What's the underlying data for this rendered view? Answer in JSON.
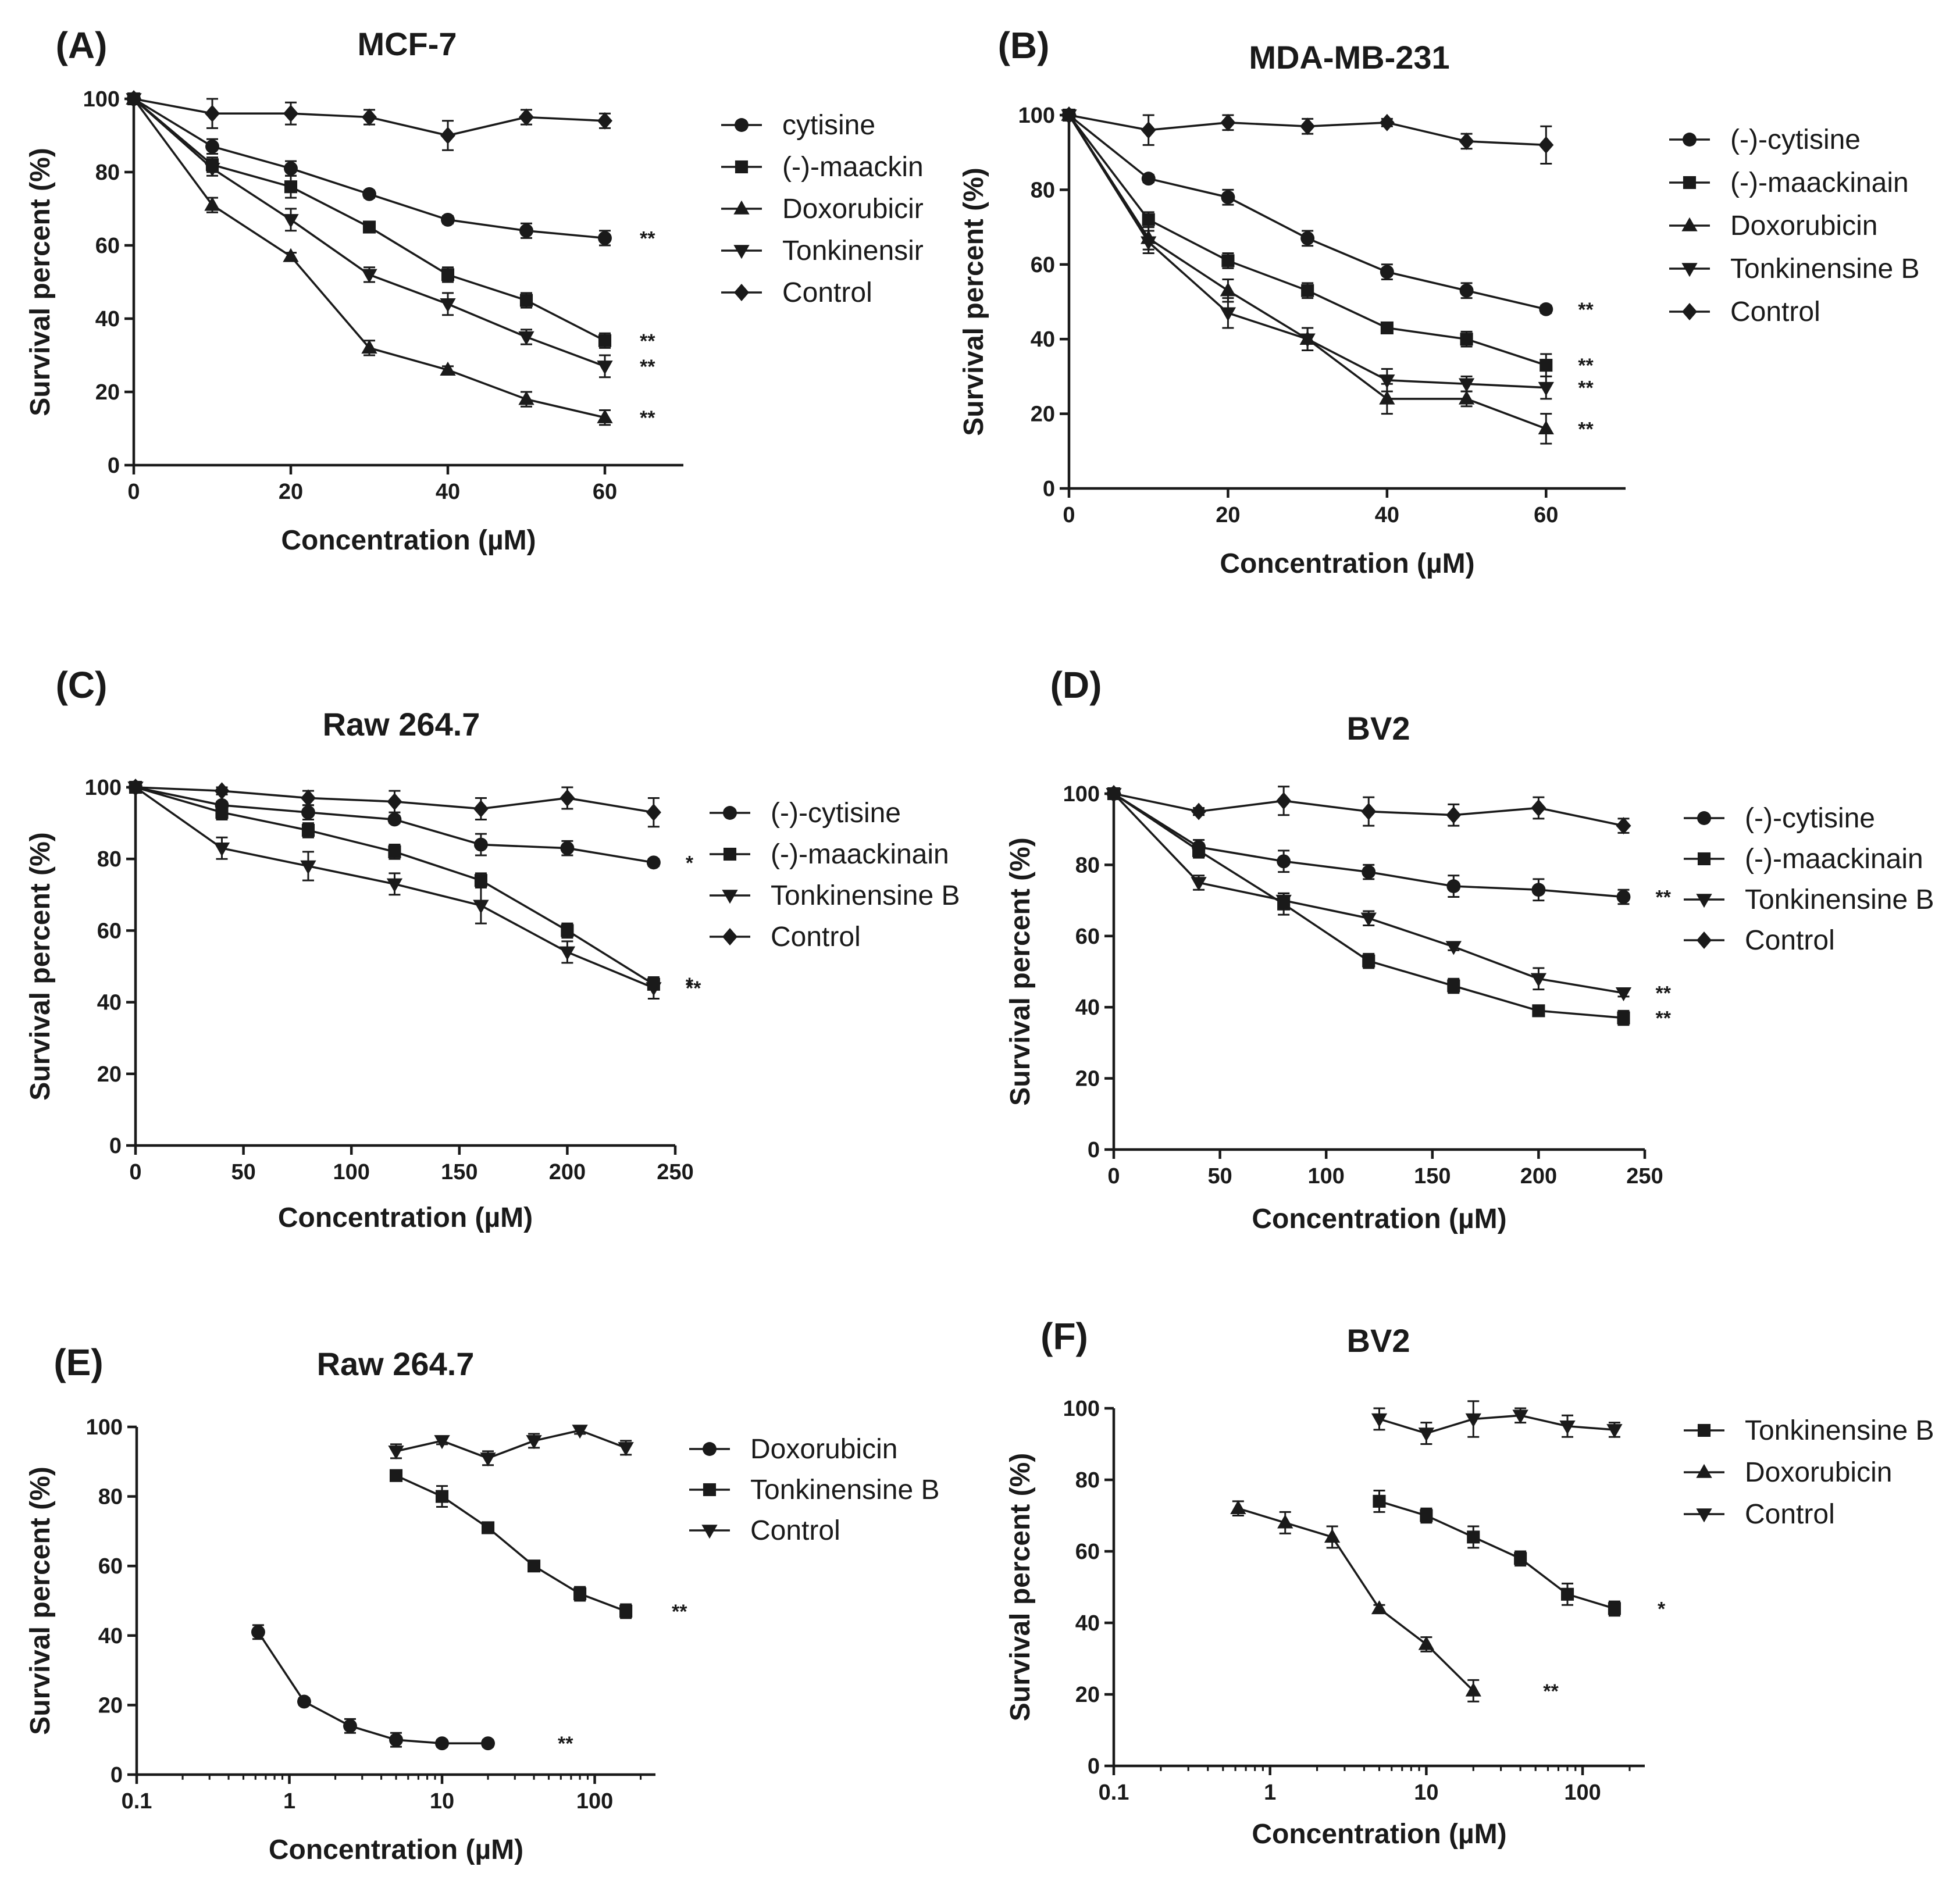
{
  "chart_data": [
    {
      "id": "A",
      "type": "line",
      "panel_label": "(A)",
      "title": "MCF-7",
      "xlabel": "Concentration (µM)",
      "ylabel": "Survival percent (%)",
      "xscale": "linear",
      "xlim": [
        0,
        70
      ],
      "ylim": [
        0,
        100
      ],
      "xticks": [
        0,
        20,
        40,
        60
      ],
      "yticks": [
        0,
        20,
        40,
        60,
        80,
        100
      ],
      "legend_position": "right",
      "series": [
        {
          "name": "cytisine",
          "marker": "circle",
          "x": [
            0,
            10,
            20,
            30,
            40,
            50,
            60
          ],
          "values": [
            100,
            87,
            81,
            74,
            67,
            64,
            62
          ],
          "errors": [
            0,
            2,
            2,
            1,
            1,
            2,
            2
          ],
          "significance": "**"
        },
        {
          "name": "(-)-maackin",
          "marker": "square",
          "x": [
            0,
            10,
            20,
            30,
            40,
            50,
            60
          ],
          "values": [
            100,
            82,
            76,
            65,
            52,
            45,
            34
          ],
          "errors": [
            0,
            2,
            3,
            1,
            2,
            2,
            2
          ],
          "significance": "**"
        },
        {
          "name": "Doxorubicir",
          "marker": "triangle-up",
          "x": [
            0,
            10,
            20,
            30,
            40,
            50,
            60
          ],
          "values": [
            100,
            71,
            57,
            32,
            26,
            18,
            13
          ],
          "errors": [
            0,
            2,
            1,
            2,
            1,
            2,
            2
          ],
          "significance": "**"
        },
        {
          "name": "Tonkinensir",
          "marker": "triangle-down",
          "x": [
            0,
            10,
            20,
            30,
            40,
            50,
            60
          ],
          "values": [
            100,
            81,
            67,
            52,
            44,
            35,
            27
          ],
          "errors": [
            0,
            2,
            3,
            2,
            3,
            2,
            3
          ],
          "significance": "**"
        },
        {
          "name": "Control",
          "marker": "diamond",
          "x": [
            0,
            10,
            20,
            30,
            40,
            50,
            60
          ],
          "values": [
            100,
            96,
            96,
            95,
            90,
            95,
            94
          ],
          "errors": [
            0,
            4,
            3,
            2,
            4,
            2,
            2
          ],
          "significance": ""
        }
      ]
    },
    {
      "id": "B",
      "type": "line",
      "panel_label": "(B)",
      "title": "MDA-MB-231",
      "xlabel": "Concentration (µM)",
      "ylabel": "Survival percent (%)",
      "xscale": "linear",
      "xlim": [
        0,
        70
      ],
      "ylim": [
        0,
        100
      ],
      "xticks": [
        0,
        20,
        40,
        60
      ],
      "yticks": [
        0,
        20,
        40,
        60,
        80,
        100
      ],
      "legend_position": "right",
      "series": [
        {
          "name": "(-)-cytisine",
          "marker": "circle",
          "x": [
            0,
            10,
            20,
            30,
            40,
            50,
            60
          ],
          "values": [
            100,
            83,
            78,
            67,
            58,
            53,
            48
          ],
          "errors": [
            0,
            1,
            2,
            2,
            2,
            2,
            1
          ],
          "significance": "**"
        },
        {
          "name": "(-)-maackinain",
          "marker": "square",
          "x": [
            0,
            10,
            20,
            30,
            40,
            50,
            60
          ],
          "values": [
            100,
            72,
            61,
            53,
            43,
            40,
            33
          ],
          "errors": [
            0,
            2,
            2,
            2,
            1,
            2,
            3
          ],
          "significance": "**"
        },
        {
          "name": "Doxorubicin",
          "marker": "triangle-up",
          "x": [
            0,
            10,
            20,
            30,
            40,
            50,
            60
          ],
          "values": [
            100,
            67,
            53,
            40,
            24,
            24,
            16
          ],
          "errors": [
            0,
            3,
            3,
            3,
            4,
            2,
            4
          ],
          "significance": "**"
        },
        {
          "name": "Tonkinensine B",
          "marker": "triangle-down",
          "x": [
            0,
            10,
            20,
            30,
            40,
            50,
            60
          ],
          "values": [
            100,
            66,
            47,
            40,
            29,
            28,
            27
          ],
          "errors": [
            0,
            3,
            4,
            3,
            3,
            2,
            3
          ],
          "significance": "**"
        },
        {
          "name": "Control",
          "marker": "diamond",
          "x": [
            0,
            10,
            20,
            30,
            40,
            50,
            60
          ],
          "values": [
            100,
            96,
            98,
            97,
            98,
            93,
            92
          ],
          "errors": [
            0,
            4,
            2,
            2,
            1,
            2,
            5
          ],
          "significance": ""
        }
      ]
    },
    {
      "id": "C",
      "type": "line",
      "panel_label": "(C)",
      "title": "Raw 264.7",
      "xlabel": "Concentration (µM)",
      "ylabel": "Survival percent (%)",
      "xscale": "linear",
      "xlim": [
        0,
        250
      ],
      "ylim": [
        0,
        100
      ],
      "xticks": [
        0,
        50,
        100,
        150,
        200,
        250
      ],
      "yticks": [
        0,
        20,
        40,
        60,
        80,
        100
      ],
      "legend_position": "right",
      "series": [
        {
          "name": "(-)-cytisine",
          "marker": "circle",
          "x": [
            0,
            40,
            80,
            120,
            160,
            200,
            240
          ],
          "values": [
            100,
            95,
            93,
            91,
            84,
            83,
            79
          ],
          "errors": [
            0,
            1,
            2,
            1,
            3,
            2,
            1
          ],
          "significance": "*"
        },
        {
          "name": "(-)-maackinain",
          "marker": "square",
          "x": [
            0,
            40,
            80,
            120,
            160,
            200,
            240
          ],
          "values": [
            100,
            93,
            88,
            82,
            74,
            60,
            45
          ],
          "errors": [
            0,
            2,
            2,
            2,
            2,
            2,
            1
          ],
          "significance": "*"
        },
        {
          "name": "Tonkinensine B",
          "marker": "triangle-down",
          "x": [
            0,
            40,
            80,
            120,
            160,
            200,
            240
          ],
          "values": [
            100,
            83,
            78,
            73,
            67,
            54,
            44
          ],
          "errors": [
            0,
            3,
            4,
            3,
            5,
            3,
            3
          ],
          "significance": "**"
        },
        {
          "name": "Control",
          "marker": "diamond",
          "x": [
            0,
            40,
            80,
            120,
            160,
            200,
            240
          ],
          "values": [
            100,
            99,
            97,
            96,
            94,
            97,
            93
          ],
          "errors": [
            0,
            1,
            2,
            3,
            3,
            3,
            4
          ],
          "significance": ""
        }
      ]
    },
    {
      "id": "D",
      "type": "line",
      "panel_label": "(D)",
      "title": "BV2",
      "xlabel": "Concentration (µM)",
      "ylabel": "Survival percent (%)",
      "xscale": "linear",
      "xlim": [
        0,
        250
      ],
      "ylim": [
        0,
        100
      ],
      "xticks": [
        0,
        50,
        100,
        150,
        200,
        250
      ],
      "yticks": [
        0,
        20,
        40,
        60,
        80,
        100
      ],
      "legend_position": "right",
      "series": [
        {
          "name": "(-)-cytisine",
          "marker": "circle",
          "x": [
            0,
            40,
            80,
            120,
            160,
            200,
            240
          ],
          "values": [
            100,
            85,
            81,
            78,
            74,
            73,
            71
          ],
          "errors": [
            0,
            2,
            3,
            2,
            3,
            3,
            2
          ],
          "significance": "**"
        },
        {
          "name": "(-)-maackinain",
          "marker": "square",
          "x": [
            0,
            40,
            80,
            120,
            160,
            200,
            240
          ],
          "values": [
            100,
            84,
            69,
            53,
            46,
            39,
            37
          ],
          "errors": [
            0,
            2,
            3,
            2,
            2,
            1,
            2
          ],
          "significance": "**"
        },
        {
          "name": "Tonkinensine B",
          "marker": "triangle-down",
          "x": [
            0,
            40,
            80,
            120,
            160,
            200,
            240
          ],
          "values": [
            100,
            75,
            70,
            65,
            57,
            48,
            44
          ],
          "errors": [
            0,
            2,
            2,
            2,
            1,
            3,
            1
          ],
          "significance": "**"
        },
        {
          "name": "Control",
          "marker": "diamond",
          "x": [
            0,
            40,
            80,
            120,
            160,
            200,
            240
          ],
          "values": [
            100,
            95,
            98,
            95,
            94,
            96,
            91
          ],
          "errors": [
            0,
            1,
            4,
            4,
            3,
            3,
            2
          ],
          "significance": ""
        }
      ]
    },
    {
      "id": "E",
      "type": "line",
      "panel_label": "(E)",
      "title": "Raw 264.7",
      "xlabel": "Concentration (µM)",
      "ylabel": "Survival percent (%)",
      "xscale": "log",
      "xlim": [
        0.1,
        250
      ],
      "ylim": [
        0,
        100
      ],
      "xticks": [
        0.1,
        1,
        10,
        100
      ],
      "xtick_labels": [
        "0.1",
        "1",
        "10",
        "100"
      ],
      "yticks": [
        0,
        20,
        40,
        60,
        80,
        100
      ],
      "legend_position": "right",
      "series": [
        {
          "name": "Doxorubicin",
          "marker": "circle",
          "x": [
            0.625,
            1.25,
            2.5,
            5,
            10,
            20
          ],
          "values": [
            41,
            21,
            14,
            10,
            9,
            9
          ],
          "errors": [
            2,
            1,
            2,
            2,
            1,
            1
          ],
          "significance": "**"
        },
        {
          "name": "Tonkinensine B",
          "marker": "square",
          "x": [
            5,
            10,
            20,
            40,
            80,
            160
          ],
          "values": [
            86,
            80,
            71,
            60,
            52,
            47
          ],
          "errors": [
            1,
            3,
            1,
            1,
            2,
            2
          ],
          "significance": "**"
        },
        {
          "name": "Control",
          "marker": "triangle-down",
          "x": [
            5,
            10,
            20,
            40,
            80,
            160
          ],
          "values": [
            93,
            96,
            91,
            96,
            99,
            94
          ],
          "errors": [
            2,
            1,
            2,
            2,
            1,
            2
          ],
          "significance": ""
        }
      ]
    },
    {
      "id": "F",
      "type": "line",
      "panel_label": "(F)",
      "title": "BV2",
      "xlabel": "Concentration (µM)",
      "ylabel": "Survival percent (%)",
      "xscale": "log",
      "xlim": [
        0.1,
        250
      ],
      "ylim": [
        0,
        100
      ],
      "xticks": [
        0.1,
        1,
        10,
        100
      ],
      "xtick_labels": [
        "0.1",
        "1",
        "10",
        "100"
      ],
      "yticks": [
        0,
        20,
        40,
        60,
        80,
        100
      ],
      "legend_position": "right",
      "series": [
        {
          "name": "Tonkinensine B",
          "marker": "square",
          "x": [
            5,
            10,
            20,
            40,
            80,
            160
          ],
          "values": [
            74,
            70,
            64,
            58,
            48,
            44
          ],
          "errors": [
            3,
            2,
            3,
            2,
            3,
            2
          ],
          "significance": "*"
        },
        {
          "name": "Doxorubicin",
          "marker": "triangle-up",
          "x": [
            0.625,
            1.25,
            2.5,
            5,
            10,
            20
          ],
          "values": [
            72,
            68,
            64,
            44,
            34,
            21
          ],
          "errors": [
            2,
            3,
            3,
            1,
            2,
            3
          ],
          "significance": "**"
        },
        {
          "name": "Control",
          "marker": "triangle-down",
          "x": [
            5,
            10,
            20,
            40,
            80,
            160
          ],
          "values": [
            97,
            93,
            97,
            98,
            95,
            94
          ],
          "errors": [
            3,
            3,
            5,
            2,
            3,
            2
          ],
          "significance": ""
        }
      ]
    }
  ]
}
